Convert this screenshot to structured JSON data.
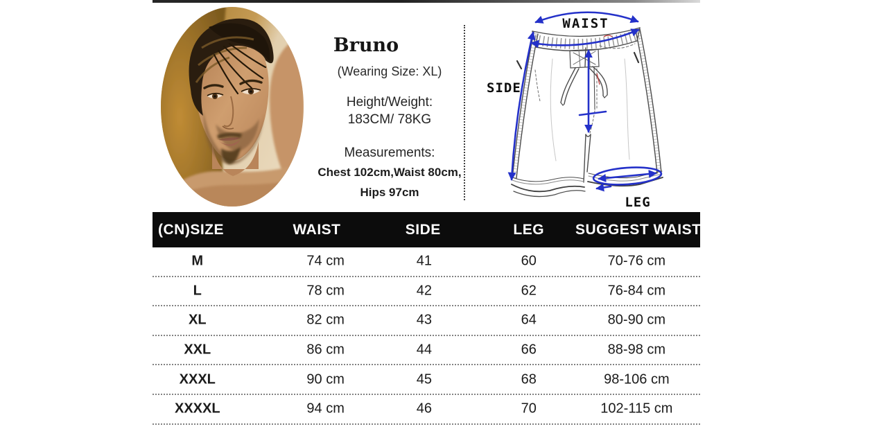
{
  "model_info": {
    "name": "Bruno",
    "wearing_size": "(Wearing Size: XL)",
    "height_weight_label": "Height/Weight:",
    "height_weight_value": "183CM/ 78KG",
    "measurements_label": "Measurements:",
    "measurements_line1": "Chest 102cm,Waist 80cm,",
    "measurements_line2": "Hips 97cm"
  },
  "diagram": {
    "waist_label": "WAIST",
    "side_label": "SIDE",
    "leg_label": "LEG",
    "annotation_color": "#2431c9"
  },
  "size_table": {
    "headers": [
      "(CN)SIZE",
      "WAIST",
      "SIDE",
      "LEG",
      "SUGGEST WAIST"
    ],
    "rows": [
      {
        "size": "M",
        "waist": "74 cm",
        "side": "41",
        "leg": "60",
        "suggest_waist": "70-76 cm"
      },
      {
        "size": "L",
        "waist": "78 cm",
        "side": "42",
        "leg": "62",
        "suggest_waist": "76-84 cm"
      },
      {
        "size": "XL",
        "waist": "82 cm",
        "side": "43",
        "leg": "64",
        "suggest_waist": "80-90 cm"
      },
      {
        "size": "XXL",
        "waist": "86 cm",
        "side": "44",
        "leg": "66",
        "suggest_waist": "88-98 cm"
      },
      {
        "size": "XXXL",
        "waist": "90 cm",
        "side": "45",
        "leg": "68",
        "suggest_waist": "98-106 cm"
      },
      {
        "size": "XXXXL",
        "waist": "94 cm",
        "side": "46",
        "leg": "70",
        "suggest_waist": "102-115 cm"
      }
    ],
    "header_bg": "#0c0c0c",
    "header_text_color": "#ffffff"
  }
}
